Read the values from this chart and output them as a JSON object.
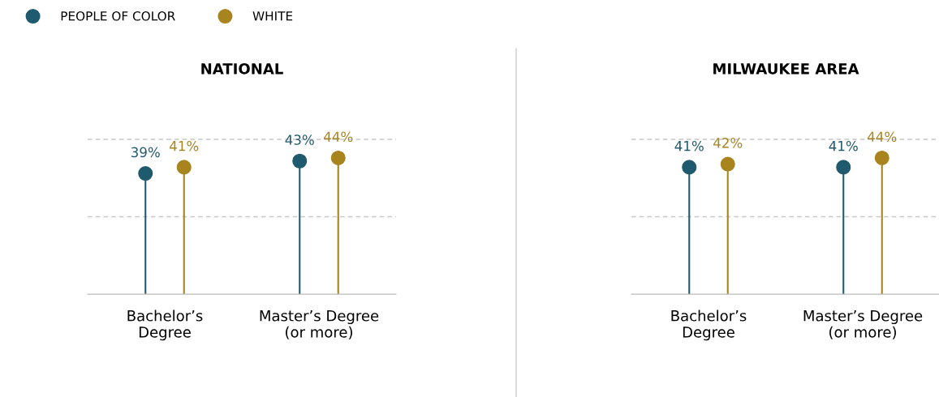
{
  "chart_data": [
    {
      "type": "lollipop",
      "title": "NATIONAL",
      "categories": [
        "Bachelor’s\nDegree",
        "Master’s Degree\n(or more)"
      ],
      "ref_lines": [
        {
          "axis": "y",
          "value": 25,
          "color": "#c8c8c8",
          "line_style": "dashed"
        },
        {
          "axis": "y",
          "value": 50,
          "color": "#c8c8c8",
          "line_style": "dashed"
        }
      ],
      "ylim": [
        0,
        50
      ],
      "tick_labels": "x",
      "legend": "top left",
      "marker": "circle",
      "series": [
        {
          "name": "PEOPLE OF COLOR",
          "color": "#1f5a6e",
          "values": [
            39,
            43
          ],
          "value_labels": [
            "39%",
            "43%"
          ]
        },
        {
          "name": "WHITE",
          "color": "#a8841e",
          "values": [
            41,
            44
          ],
          "value_labels": [
            "41%",
            "44%"
          ]
        }
      ]
    },
    {
      "type": "lollipop",
      "title": "MILWAUKEE AREA",
      "categories": [
        "Bachelor’s\nDegree",
        "Master’s Degree\n(or more)"
      ],
      "ref_lines": [
        {
          "axis": "y",
          "value": 25,
          "color": "#c8c8c8",
          "line_style": "dashed"
        },
        {
          "axis": "y",
          "value": 50,
          "color": "#c8c8c8",
          "line_style": "dashed"
        }
      ],
      "ylim": [
        0,
        50
      ],
      "tick_labels": "x",
      "marker": "circle",
      "series": [
        {
          "color": "#1f5a6e",
          "values": [
            41,
            41
          ],
          "value_labels": [
            "41%",
            "41%"
          ]
        },
        {
          "color": "#a8841e",
          "values": [
            42,
            44
          ],
          "value_labels": [
            "42%",
            "44%"
          ]
        }
      ]
    }
  ]
}
